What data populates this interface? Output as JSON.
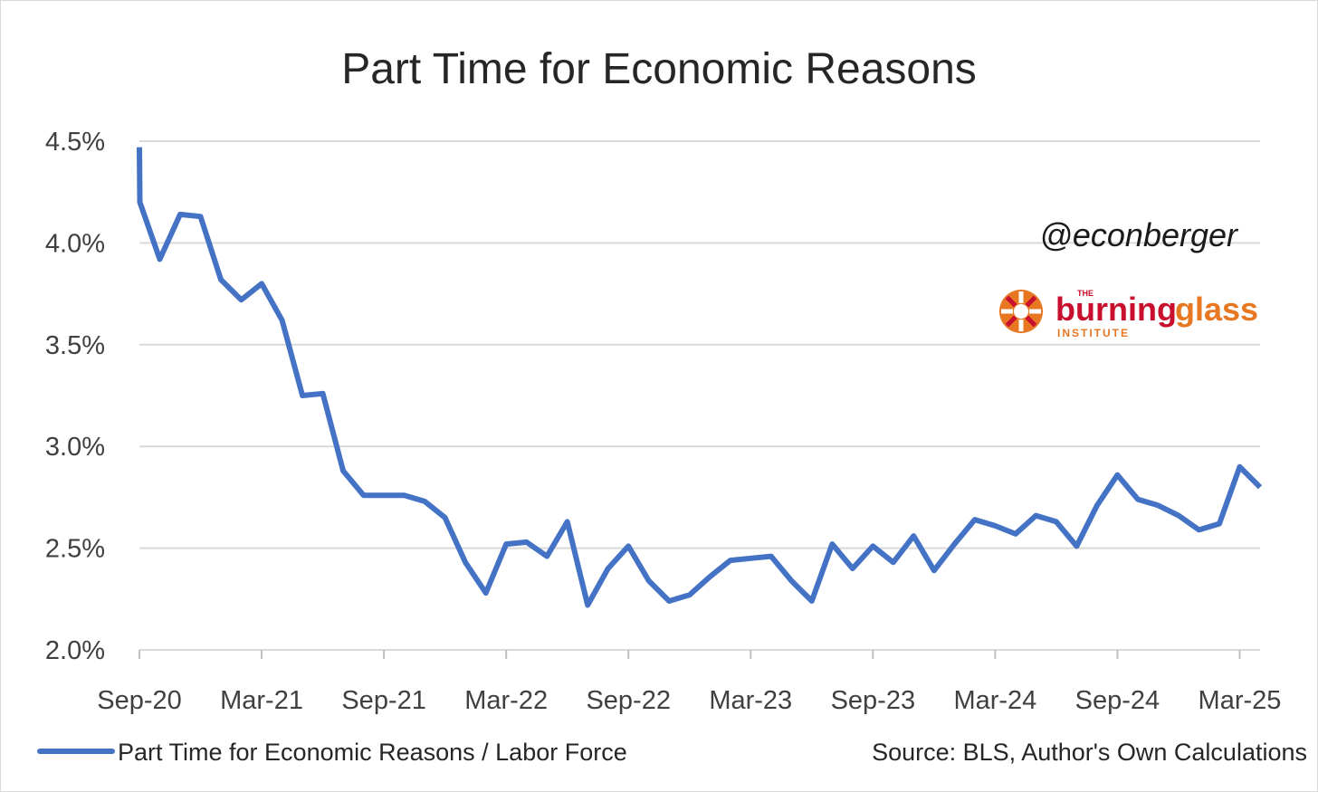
{
  "chart_data": {
    "type": "line",
    "title": "Part Time for Economic Reasons",
    "xlabel": "",
    "ylabel": "",
    "ylim": [
      2.0,
      4.5
    ],
    "yticks": [
      "2.0%",
      "2.5%",
      "3.0%",
      "3.5%",
      "4.0%",
      "4.5%"
    ],
    "ytick_values": [
      2.0,
      2.5,
      3.0,
      3.5,
      4.0,
      4.5
    ],
    "xticks": [
      "Sep-20",
      "Mar-21",
      "Sep-21",
      "Mar-22",
      "Sep-22",
      "Mar-23",
      "Sep-23",
      "Mar-24",
      "Sep-24",
      "Mar-25"
    ],
    "x": [
      "2020-09",
      "2020-09",
      "2020-10",
      "2020-11",
      "2020-12",
      "2021-01",
      "2021-02",
      "2021-03",
      "2021-04",
      "2021-05",
      "2021-06",
      "2021-07",
      "2021-08",
      "2021-09",
      "2021-10",
      "2021-11",
      "2021-12",
      "2022-01",
      "2022-02",
      "2022-03",
      "2022-04",
      "2022-05",
      "2022-06",
      "2022-07",
      "2022-08",
      "2022-09",
      "2022-10",
      "2022-11",
      "2022-12",
      "2023-01",
      "2023-02",
      "2023-03",
      "2023-04",
      "2023-05",
      "2023-06",
      "2023-07",
      "2023-08",
      "2023-09",
      "2023-10",
      "2023-11",
      "2023-12",
      "2024-01",
      "2024-02",
      "2024-03",
      "2024-04",
      "2024-05",
      "2024-06",
      "2024-07",
      "2024-08",
      "2024-09",
      "2024-10",
      "2024-11",
      "2024-12",
      "2025-01",
      "2025-02",
      "2025-03",
      "2025-04"
    ],
    "grid": true,
    "legend_position": "bottom-left",
    "series": [
      {
        "name": "Part Time for Economic Reasons / Labor Force",
        "color": "#4472C4",
        "values": [
          4.47,
          4.2,
          3.92,
          4.14,
          4.13,
          3.82,
          3.72,
          3.8,
          3.62,
          3.25,
          3.26,
          2.88,
          2.76,
          2.76,
          2.76,
          2.73,
          2.65,
          2.43,
          2.28,
          2.52,
          2.53,
          2.46,
          2.63,
          2.22,
          2.4,
          2.51,
          2.34,
          2.24,
          2.27,
          2.36,
          2.44,
          2.45,
          2.46,
          2.34,
          2.24,
          2.52,
          2.4,
          2.51,
          2.43,
          2.56,
          2.39,
          2.52,
          2.64,
          2.61,
          2.57,
          2.66,
          2.63,
          2.51,
          2.71,
          2.86,
          2.74,
          2.71,
          2.66,
          2.59,
          2.62,
          2.9,
          2.8
        ]
      }
    ],
    "annotations": {
      "source": "Source: BLS, Author's Own Calculations",
      "handle": "@econberger"
    }
  },
  "brand": {
    "the": "THE",
    "burning": "burning",
    "glass": "glass",
    "institute": "INSTITUTE",
    "burning_color": "#C8102E",
    "glass_color": "#E87722"
  }
}
